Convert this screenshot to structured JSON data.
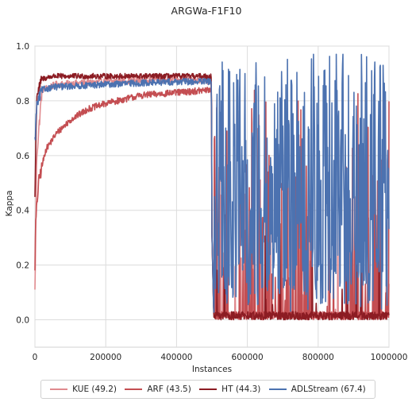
{
  "chart_data": {
    "type": "line",
    "title": "ARGWa-F1F10",
    "xlabel": "Instances",
    "ylabel": "Kappa",
    "xlim": [
      0,
      1000000
    ],
    "ylim": [
      -0.1,
      1.0
    ],
    "xticks": [
      0,
      200000,
      400000,
      600000,
      800000,
      1000000
    ],
    "xtick_labels": [
      "0",
      "200000",
      "400000",
      "600000",
      "800000",
      "1000000"
    ],
    "yticks": [
      0.0,
      0.2,
      0.4,
      0.6,
      0.8,
      1.0
    ],
    "ytick_labels": [
      "0.0",
      "0.2",
      "0.4",
      "0.6",
      "0.8",
      "1.0"
    ],
    "grid": true,
    "legend_position": "bottom-center",
    "drift_at": 500000,
    "series": [
      {
        "name": "KUE (49.2)",
        "color": "#e08a8e",
        "summary": [
          [
            0,
            0.1
          ],
          [
            5000,
            0.6
          ],
          [
            20000,
            0.84
          ],
          [
            60000,
            0.86
          ],
          [
            200000,
            0.87
          ],
          [
            400000,
            0.88
          ],
          [
            498000,
            0.87
          ],
          [
            505000,
            0.05
          ],
          [
            520000,
            0.0
          ],
          [
            1000000,
            0.0
          ]
        ],
        "regime2": "intermittent spikes from 0.0 up to about 0.5 after the drift"
      },
      {
        "name": "ARF (43.5)",
        "color": "#c44e52",
        "summary": [
          [
            0,
            0.2
          ],
          [
            2000,
            0.35
          ],
          [
            10000,
            0.5
          ],
          [
            30000,
            0.62
          ],
          [
            60000,
            0.68
          ],
          [
            100000,
            0.73
          ],
          [
            150000,
            0.77
          ],
          [
            200000,
            0.79
          ],
          [
            300000,
            0.82
          ],
          [
            400000,
            0.83
          ],
          [
            498000,
            0.84
          ],
          [
            505000,
            0.05
          ],
          [
            520000,
            0.0
          ],
          [
            1000000,
            0.0
          ]
        ],
        "regime2": "frequent spikes from 0.0 up to 0.5–0.88 after the drift"
      },
      {
        "name": "HT (44.3)",
        "color": "#8c1c23",
        "summary": [
          [
            0,
            0.45
          ],
          [
            5000,
            0.82
          ],
          [
            20000,
            0.88
          ],
          [
            50000,
            0.89
          ],
          [
            200000,
            0.89
          ],
          [
            400000,
            0.89
          ],
          [
            498000,
            0.89
          ],
          [
            505000,
            0.02
          ],
          [
            520000,
            0.0
          ],
          [
            1000000,
            0.0
          ]
        ],
        "regime2": "mostly flat near 0.0 with rare spikes after the drift"
      },
      {
        "name": "ADLStream (67.4)",
        "color": "#4c72b0",
        "summary": [
          [
            0,
            0.65
          ],
          [
            5000,
            0.78
          ],
          [
            20000,
            0.84
          ],
          [
            50000,
            0.85
          ],
          [
            200000,
            0.86
          ],
          [
            400000,
            0.87
          ],
          [
            498000,
            0.87
          ],
          [
            505000,
            0.05
          ],
          [
            520000,
            0.2
          ],
          [
            1000000,
            0.2
          ]
        ],
        "regime2": "dense oscillation between about 0.05 and 0.96 after the drift"
      }
    ]
  }
}
